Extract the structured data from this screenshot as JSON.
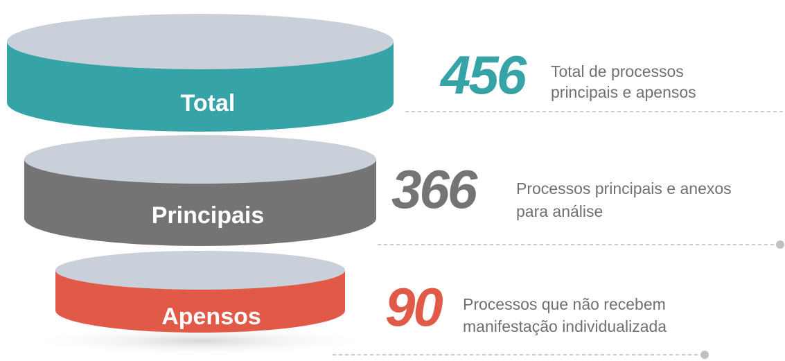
{
  "nodes": [
    {
      "label": "Total",
      "value": 456,
      "description": [
        "Total de processos",
        "principais e apensos"
      ]
    },
    {
      "label": "Principais",
      "value": 366,
      "description": [
        "Processos principais e anexos",
        "para análise"
      ]
    },
    {
      "label": "Apensos",
      "value": 90,
      "description": [
        "Processos que não recebem",
        "manifestação individualizada"
      ]
    }
  ]
}
